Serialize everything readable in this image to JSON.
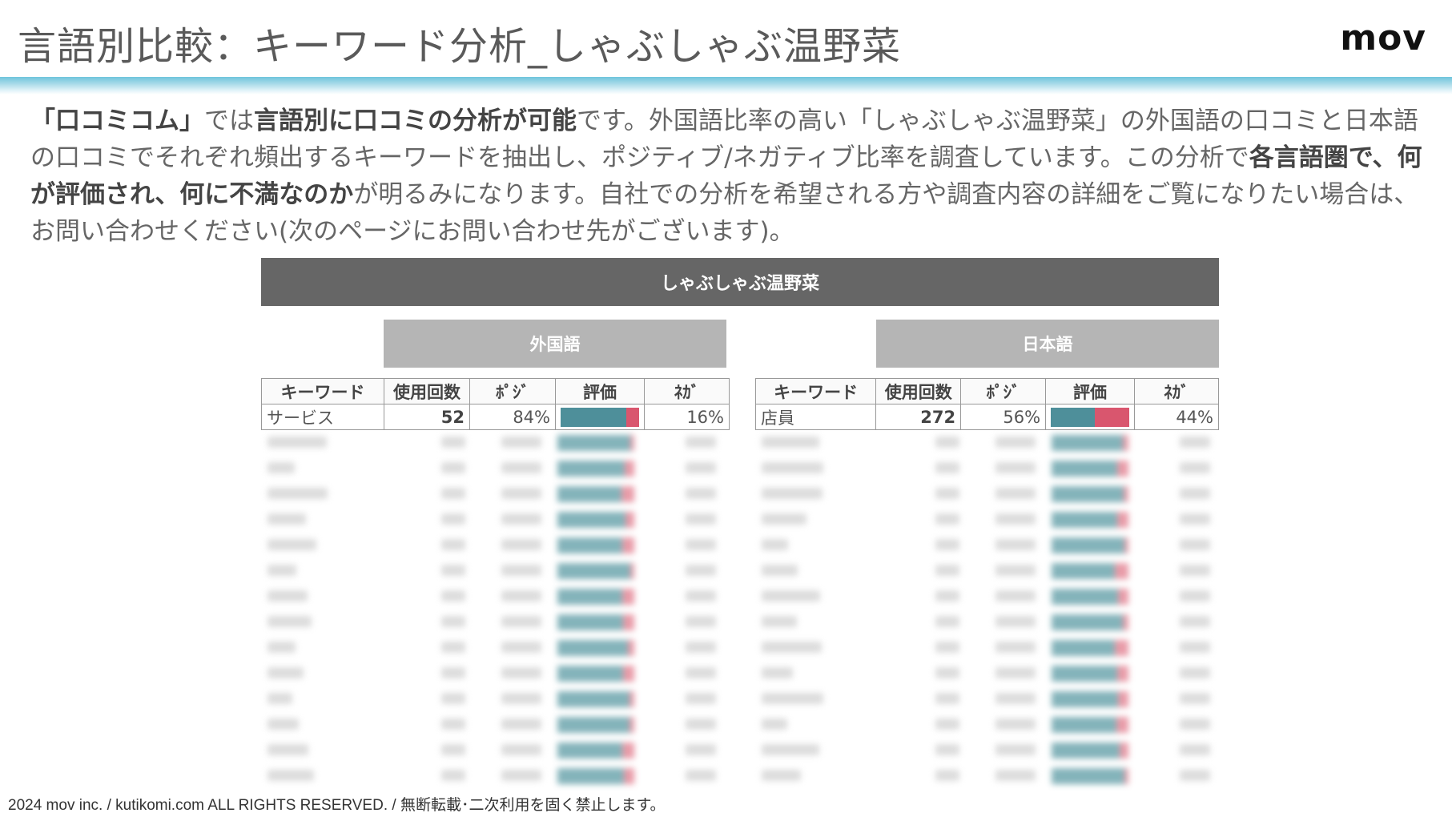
{
  "header": {
    "title": "言語別比較：キーワード分析_しゃぶしゃぶ温野菜",
    "logo": "mov"
  },
  "intro": {
    "s1": "「口コミコム」",
    "s2": "では",
    "s3": "言語別に口コミの分析が可能",
    "s4": "です。外国語比率の高い「しゃぶしゃぶ温野菜」の外国語の口コミと日本語の口コミでそれぞれ頻出するキーワードを抽出し、ポジティブ/ネガティブ比率を調査しています。この分析で",
    "s5": "各言語圏で、何が評価され、何に不満なのか",
    "s6": "が明るみになります。自社での分析を希望される方や調査内容の詳細をご覧になりたい場合は、お問い合わせください(次のページにお問い合わせ先がございます)。"
  },
  "table": {
    "main_title": "しゃぶしゃぶ温野菜",
    "columns": [
      "キーワード",
      "使用回数",
      "ﾎﾟｼﾞ",
      "評価",
      "ﾈｶﾞ"
    ],
    "foreign": {
      "title": "外国語",
      "row": {
        "keyword": "サービス",
        "count": "52",
        "positive": "84%",
        "negative": "16%",
        "positive_ratio": 0.84
      }
    },
    "japanese": {
      "title": "日本語",
      "row": {
        "keyword": "店員",
        "count": "272",
        "positive": "56%",
        "negative": "44%",
        "positive_ratio": 0.56
      }
    }
  },
  "colors": {
    "positive": "#4e8f9a",
    "negative": "#d9566e",
    "header_bar": "#6fc5dc"
  },
  "footer": {
    "text": "2024 mov inc. / kutikomi.com ALL RIGHTS RESERVED. / 無断転載･二次利用を固く禁止します。"
  }
}
